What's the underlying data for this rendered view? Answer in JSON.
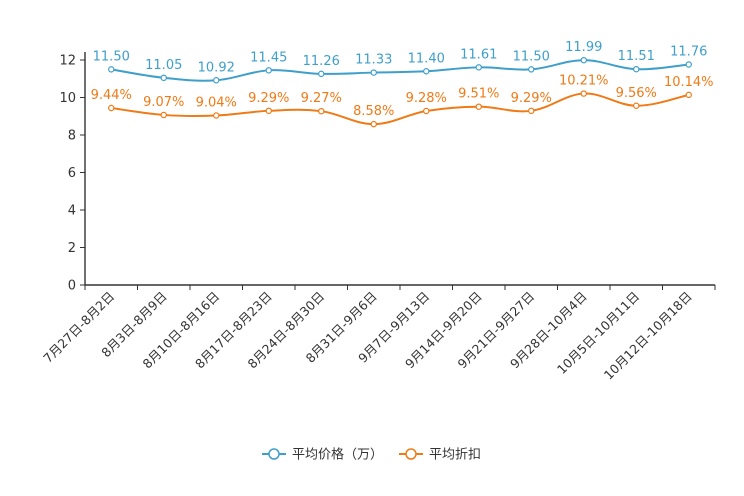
{
  "chart_data": {
    "type": "line",
    "title": "",
    "xlabel": "",
    "ylabel": "",
    "ylim": [
      0,
      12
    ],
    "yticks": [
      0,
      2,
      4,
      6,
      8,
      10,
      12
    ],
    "grid": false,
    "legend_position": "bottom-center",
    "categories": [
      "7月27日-8月2日",
      "8月3日-8月9日",
      "8月10日-8月16日",
      "8月17日-8月23日",
      "8月24日-8月30日",
      "8月31日-9月6日",
      "9月7日-9月13日",
      "9月14日-9月20日",
      "9月21日-9月27日",
      "9月28日-10月4日",
      "10月5日-10月11日",
      "10月12日-10月18日"
    ],
    "series": [
      {
        "name": "平均价格（万）",
        "color": "#3f9fcb",
        "values": [
          11.5,
          11.05,
          10.92,
          11.45,
          11.26,
          11.33,
          11.4,
          11.61,
          11.5,
          11.99,
          11.51,
          11.76
        ],
        "labels": [
          "11.50",
          "11.05",
          "10.92",
          "11.45",
          "11.26",
          "11.33",
          "11.40",
          "11.61",
          "11.50",
          "11.99",
          "11.51",
          "11.76"
        ]
      },
      {
        "name": "平均折扣",
        "color": "#f07a16",
        "values": [
          9.44,
          9.07,
          9.04,
          9.29,
          9.27,
          8.58,
          9.28,
          9.51,
          9.29,
          10.21,
          9.56,
          10.14
        ],
        "labels": [
          "9.44%",
          "9.07%",
          "9.04%",
          "9.29%",
          "9.27%",
          "8.58%",
          "9.28%",
          "9.51%",
          "9.29%",
          "10.21%",
          "9.56%",
          "10.14%"
        ]
      }
    ]
  }
}
